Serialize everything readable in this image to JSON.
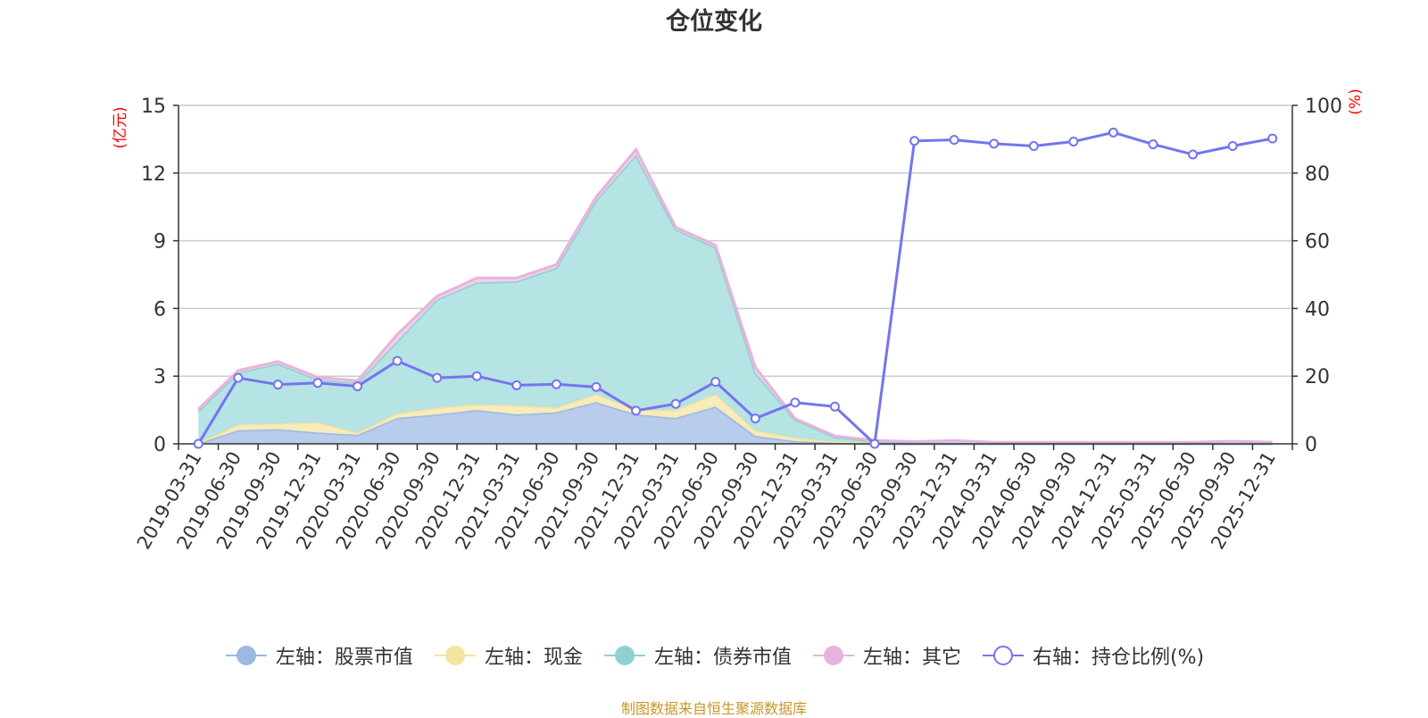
{
  "title": "仓位变化",
  "footer": "制图数据来自恒生聚源数据库",
  "chart_data": {
    "type": "area",
    "title": "仓位变化",
    "categories": [
      "2019-03-31",
      "2019-06-30",
      "2019-09-30",
      "2019-12-31",
      "2020-03-31",
      "2020-06-30",
      "2020-09-30",
      "2020-12-31",
      "2021-03-31",
      "2021-06-30",
      "2021-09-30",
      "2021-12-31",
      "2022-03-31",
      "2022-06-30",
      "2022-09-30",
      "2022-12-31",
      "2023-03-31",
      "2023-06-30",
      "2023-09-30",
      "2023-12-31",
      "2024-03-31",
      "2024-06-30",
      "2024-09-30",
      "2024-12-31",
      "2025-03-31",
      "2025-06-30",
      "2025-09-30",
      "2025-12-31"
    ],
    "y_left": {
      "label": "(亿元)",
      "ticks": [
        0,
        3,
        6,
        9,
        12,
        15
      ],
      "lim": [
        0,
        15
      ],
      "label_color": "#ff0000"
    },
    "y_right": {
      "label": "(%)",
      "ticks": [
        0,
        20,
        40,
        60,
        80,
        100
      ],
      "lim": [
        0,
        100
      ],
      "label_color": "#ff0000"
    },
    "grid": true,
    "legend_position": "bottom",
    "stacked_series": [
      {
        "name": "左轴：股票市值",
        "color": "#9db8e3",
        "fill": "#b4c9ea",
        "values": [
          0.02,
          0.6,
          0.65,
          0.5,
          0.4,
          1.15,
          1.3,
          1.5,
          1.3,
          1.4,
          1.85,
          1.3,
          1.15,
          1.65,
          0.35,
          0.12,
          0.05,
          0.0,
          0.0,
          0.0,
          0.0,
          0.0,
          0.0,
          0.0,
          0.0,
          0.0,
          0.0,
          0.0
        ]
      },
      {
        "name": "左轴：现金",
        "color": "#f5e3a0",
        "fill": "#f8ebb7",
        "values": [
          0.02,
          0.25,
          0.25,
          0.45,
          0.1,
          0.2,
          0.3,
          0.25,
          0.4,
          0.2,
          0.35,
          0.2,
          0.35,
          0.55,
          0.25,
          0.15,
          0.05,
          0.05,
          0.05,
          0.05,
          0.02,
          0.02,
          0.02,
          0.02,
          0.02,
          0.02,
          0.02,
          0.02
        ]
      },
      {
        "name": "左轴：债券市值",
        "color": "#8fd1d1",
        "fill": "#b2e1e1",
        "values": [
          1.4,
          2.3,
          2.65,
          1.9,
          2.2,
          3.2,
          4.8,
          5.4,
          5.5,
          6.2,
          8.6,
          11.3,
          8.0,
          6.5,
          2.55,
          0.8,
          0.2,
          0.05,
          0.0,
          0.0,
          0.0,
          0.0,
          0.0,
          0.0,
          0.0,
          0.0,
          0.0,
          0.0
        ]
      },
      {
        "name": "左轴：其它",
        "color": "#e7b3dc",
        "fill": "#f1cfea",
        "values": [
          0.1,
          0.1,
          0.1,
          0.1,
          0.1,
          0.3,
          0.15,
          0.2,
          0.15,
          0.15,
          0.15,
          0.25,
          0.1,
          0.1,
          0.25,
          0.05,
          0.05,
          0.05,
          0.05,
          0.1,
          0.05,
          0.05,
          0.05,
          0.05,
          0.05,
          0.05,
          0.1,
          0.05
        ]
      }
    ],
    "line_series": {
      "name": "右轴：持仓比例(%)",
      "color": "#7474f0",
      "axis": "right",
      "values": [
        0,
        19.5,
        17.5,
        18,
        17,
        24.5,
        19.5,
        20,
        17.3,
        17.6,
        16.8,
        9.8,
        11.8,
        18.3,
        7.5,
        12.2,
        11,
        0,
        89.5,
        89.8,
        88.7,
        88,
        89.3,
        92,
        88.5,
        85.5,
        88,
        90.2
      ]
    }
  }
}
